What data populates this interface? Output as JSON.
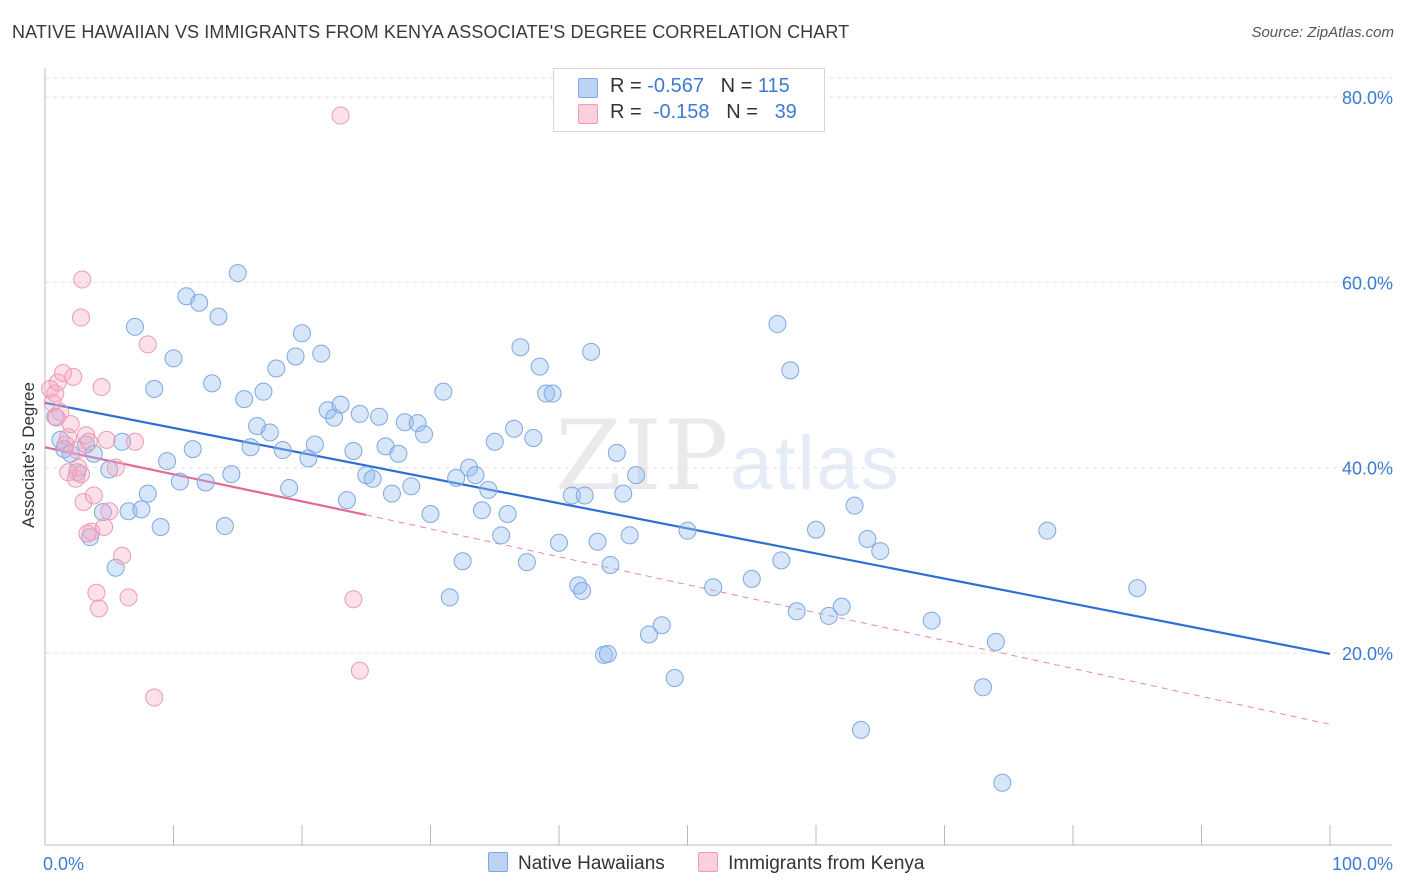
{
  "title": "NATIVE HAWAIIAN VS IMMIGRANTS FROM KENYA ASSOCIATE'S DEGREE CORRELATION CHART",
  "source": "Source: ZipAtlas.com",
  "watermark": {
    "zip": "ZIP",
    "atlas": "atlas"
  },
  "legend": {
    "rows": [
      {
        "r_label": "R =",
        "r_value": "-0.567",
        "n_label": "N =",
        "n_value": "115",
        "color": "#a9c7ef"
      },
      {
        "r_label": "R =",
        "r_value": "-0.158",
        "n_label": "N =",
        "n_value": "39",
        "color": "#f6b8cb"
      }
    ]
  },
  "bottom_legend": [
    {
      "label": "Native Hawaiians",
      "color": "#a9c7ef"
    },
    {
      "label": "Immigrants from Kenya",
      "color": "#f6b8cb"
    }
  ],
  "chart_data": {
    "type": "scatter",
    "title": "NATIVE HAWAIIAN VS IMMIGRANTS FROM KENYA ASSOCIATE'S DEGREE CORRELATION CHART",
    "xlabel": "",
    "ylabel": "Associate's Degree",
    "xlim": [
      0,
      100
    ],
    "ylim": [
      0,
      85
    ],
    "x_tick_labels": [
      "0.0%",
      "100.0%"
    ],
    "y_ticks": [
      20,
      40,
      60,
      80
    ],
    "y_tick_labels": [
      "20.0%",
      "40.0%",
      "60.0%",
      "80.0%"
    ],
    "grid": true,
    "series": [
      {
        "name": "Native Hawaiians",
        "color": "#6fa0e3",
        "r": -0.567,
        "n": 115,
        "trend": {
          "x": [
            0,
            100
          ],
          "y": [
            47.0,
            19.9
          ]
        },
        "points": [
          [
            0.8,
            45.5
          ],
          [
            1.2,
            43
          ],
          [
            1.5,
            42
          ],
          [
            2,
            41.5
          ],
          [
            2.5,
            39.5
          ],
          [
            3.2,
            42.5
          ],
          [
            3.5,
            32.5
          ],
          [
            3.8,
            41.5
          ],
          [
            4.5,
            35.2
          ],
          [
            5,
            39.8
          ],
          [
            5.5,
            29.2
          ],
          [
            6,
            42.8
          ],
          [
            6.5,
            35.3
          ],
          [
            7,
            55.2
          ],
          [
            7.5,
            35.5
          ],
          [
            8,
            37.2
          ],
          [
            8.5,
            48.5
          ],
          [
            9,
            33.6
          ],
          [
            9.5,
            40.7
          ],
          [
            10,
            51.8
          ],
          [
            10.5,
            38.5
          ],
          [
            11,
            58.5
          ],
          [
            11.5,
            42
          ],
          [
            12,
            57.8
          ],
          [
            12.5,
            38.4
          ],
          [
            13,
            49.1
          ],
          [
            13.5,
            56.3
          ],
          [
            14,
            33.7
          ],
          [
            14.5,
            39.3
          ],
          [
            15,
            61
          ],
          [
            15.5,
            47.4
          ],
          [
            16,
            42.2
          ],
          [
            16.5,
            44.5
          ],
          [
            17,
            48.2
          ],
          [
            17.5,
            43.8
          ],
          [
            18,
            50.7
          ],
          [
            18.5,
            41.9
          ],
          [
            19,
            37.8
          ],
          [
            19.5,
            52
          ],
          [
            20,
            54.5
          ],
          [
            20.5,
            41
          ],
          [
            21,
            42.5
          ],
          [
            21.5,
            52.3
          ],
          [
            22,
            46.2
          ],
          [
            22.5,
            45.4
          ],
          [
            23,
            46.8
          ],
          [
            23.5,
            36.5
          ],
          [
            24,
            41.8
          ],
          [
            24.5,
            45.8
          ],
          [
            25,
            39.2
          ],
          [
            25.5,
            38.8
          ],
          [
            26,
            45.5
          ],
          [
            26.5,
            42.3
          ],
          [
            27,
            37.2
          ],
          [
            27.5,
            41.5
          ],
          [
            28,
            44.9
          ],
          [
            28.5,
            38
          ],
          [
            29,
            44.8
          ],
          [
            29.5,
            43.6
          ],
          [
            30,
            35
          ],
          [
            31,
            48.2
          ],
          [
            31.5,
            26
          ],
          [
            32,
            38.9
          ],
          [
            32.5,
            29.9
          ],
          [
            33,
            40
          ],
          [
            33.5,
            39.2
          ],
          [
            34,
            35.4
          ],
          [
            34.5,
            37.6
          ],
          [
            35,
            42.8
          ],
          [
            35.5,
            32.7
          ],
          [
            36,
            35
          ],
          [
            36.5,
            44.2
          ],
          [
            37,
            53
          ],
          [
            37.5,
            29.8
          ],
          [
            38,
            43.2
          ],
          [
            38.5,
            50.9
          ],
          [
            39,
            48
          ],
          [
            39.5,
            48
          ],
          [
            40,
            31.9
          ],
          [
            41,
            37
          ],
          [
            41.5,
            27.3
          ],
          [
            41.8,
            26.7
          ],
          [
            42,
            37
          ],
          [
            42.5,
            52.5
          ],
          [
            43,
            32
          ],
          [
            43.5,
            19.8
          ],
          [
            43.8,
            19.9
          ],
          [
            44,
            29.5
          ],
          [
            44.5,
            41.6
          ],
          [
            45,
            37.2
          ],
          [
            45.5,
            32.7
          ],
          [
            46,
            39.2
          ],
          [
            47,
            22
          ],
          [
            48,
            23
          ],
          [
            49,
            17.3
          ],
          [
            50,
            33.2
          ],
          [
            52,
            27.1
          ],
          [
            55,
            28
          ],
          [
            57,
            55.5
          ],
          [
            57.3,
            30
          ],
          [
            58,
            50.5
          ],
          [
            58.5,
            24.5
          ],
          [
            60,
            33.3
          ],
          [
            61,
            24
          ],
          [
            62,
            25
          ],
          [
            63,
            35.9
          ],
          [
            63.5,
            11.7
          ],
          [
            64,
            32.3
          ],
          [
            65,
            31
          ],
          [
            69,
            23.5
          ],
          [
            73,
            16.3
          ],
          [
            74,
            21.2
          ],
          [
            74.5,
            6
          ],
          [
            78,
            33.2
          ],
          [
            85,
            27
          ]
        ]
      },
      {
        "name": "Immigrants from Kenya",
        "color": "#f28fae",
        "r": -0.158,
        "n": 39,
        "trend_solid": {
          "x": [
            0,
            25
          ],
          "y": [
            42.2,
            34.9
          ]
        },
        "trend_dashed": {
          "x": [
            25,
            100
          ],
          "y": [
            34.9,
            12.3
          ]
        },
        "points": [
          [
            0.4,
            48.5
          ],
          [
            0.6,
            47
          ],
          [
            0.8,
            48
          ],
          [
            1,
            49.2
          ],
          [
            1.2,
            46
          ],
          [
            1.4,
            50.2
          ],
          [
            1.6,
            42.5
          ],
          [
            1.8,
            43.3
          ],
          [
            2,
            44.7
          ],
          [
            2.2,
            49.8
          ],
          [
            2.4,
            38.8
          ],
          [
            2.6,
            40
          ],
          [
            2.8,
            39.3
          ],
          [
            3,
            36.3
          ],
          [
            3.2,
            43.5
          ],
          [
            3.4,
            42.8
          ],
          [
            3.6,
            33.1
          ],
          [
            3.8,
            37
          ],
          [
            4,
            26.5
          ],
          [
            4.2,
            24.8
          ],
          [
            4.4,
            48.7
          ],
          [
            4.6,
            33.6
          ],
          [
            4.8,
            43
          ],
          [
            5,
            35.3
          ],
          [
            5.5,
            40
          ],
          [
            6,
            30.5
          ],
          [
            6.5,
            26
          ],
          [
            7,
            42.8
          ],
          [
            8,
            53.3
          ],
          [
            8.5,
            15.2
          ],
          [
            2.8,
            56.2
          ],
          [
            2.9,
            60.3
          ],
          [
            23,
            78
          ],
          [
            24,
            25.8
          ],
          [
            24.5,
            18.1
          ],
          [
            2.5,
            41.9
          ],
          [
            3.3,
            32.9
          ],
          [
            1.8,
            39.5
          ],
          [
            0.9,
            45.4
          ]
        ]
      }
    ]
  }
}
